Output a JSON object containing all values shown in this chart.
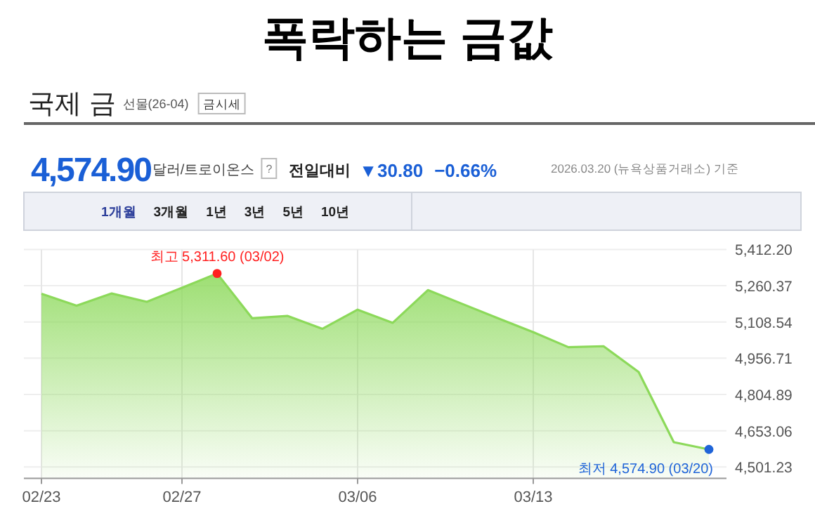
{
  "chart_data": {
    "type": "area",
    "title": "폭락하는 금값",
    "categories": [
      "02/23",
      null,
      null,
      null,
      "02/27",
      null,
      null,
      null,
      null,
      "03/06",
      null,
      null,
      null,
      null,
      "03/13",
      null,
      null,
      null,
      null,
      null
    ],
    "series": [
      {
        "color": "#8cd95a",
        "values": [
          5227,
          5177,
          5228,
          5193,
          5252,
          5311.6,
          5124,
          5134,
          5080,
          5160,
          5105,
          5242,
          5183,
          5124,
          5066,
          5003,
          5007,
          4899,
          4605,
          4574.9
        ]
      },
      {
        "type": "scatter",
        "color": "#ff2020",
        "values": [
          null,
          null,
          null,
          null,
          null,
          5311.6,
          null,
          null,
          null,
          null,
          null,
          null,
          null,
          null,
          null,
          null,
          null,
          null,
          null,
          null
        ]
      },
      {
        "type": "scatter",
        "color": "#1f64d8",
        "values": [
          null,
          null,
          null,
          null,
          null,
          null,
          null,
          null,
          null,
          null,
          null,
          null,
          null,
          null,
          null,
          null,
          null,
          null,
          null,
          4574.9
        ]
      }
    ],
    "ylim": [
      4454,
      5412.2
    ],
    "yticks": [
      {
        "value": 4501.23,
        "label": "4,501.23"
      },
      {
        "value": 4653.06,
        "label": "4,653.06"
      },
      {
        "value": 4804.89,
        "label": "4,804.89"
      },
      {
        "value": 4956.71,
        "label": "4,956.71"
      },
      {
        "value": 5108.54,
        "label": "5,108.54"
      },
      {
        "value": 5260.37,
        "label": "5,260.37"
      },
      {
        "value": 5412.2,
        "label": "5,412.20"
      }
    ],
    "grid": true,
    "annotations": [
      "국제 금",
      "선물(26-04)",
      "금시세",
      "4,574.90",
      "달러/트로이온스",
      "?",
      "전일대비",
      "▼30.80",
      "−0.66%",
      "2026.03.20 (뉴욕상품거래소) 기준",
      "1개월",
      "3개월",
      "1년",
      "3년",
      "5년",
      "10년",
      "최고 5,311.60 (03/02)",
      "최저 4,574.90 (03/20)"
    ]
  }
}
